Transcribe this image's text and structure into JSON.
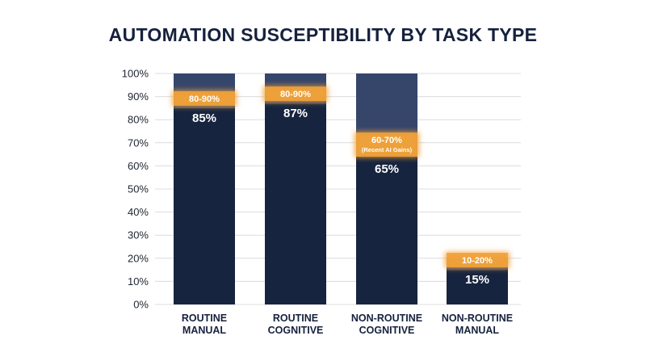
{
  "chart_data": {
    "type": "bar",
    "title": "AUTOMATION SUSCEPTIBILITY BY TASK TYPE",
    "xlabel": "",
    "ylabel": "",
    "ylim": [
      0,
      100
    ],
    "yticks": [
      "0%",
      "10%",
      "20%",
      "30%",
      "40%",
      "50%",
      "60%",
      "70%",
      "80%",
      "90%",
      "100%"
    ],
    "categories": [
      [
        "ROUTINE",
        "MANUAL"
      ],
      [
        "ROUTINE",
        "COGNITIVE"
      ],
      [
        "NON-ROUTINE",
        "COGNITIVE"
      ],
      [
        "NON-ROUTINE",
        "MANUAL"
      ]
    ],
    "values": [
      85,
      87,
      65,
      15
    ],
    "value_labels": [
      "85%",
      "87%",
      "65%",
      "15%"
    ],
    "range_top": [
      100,
      100,
      100,
      20
    ],
    "range_labels": [
      "80-90%",
      "80-90%",
      "60-70%",
      "10-20%"
    ],
    "range_notes": [
      "",
      "",
      "(Recent AI Gains)",
      ""
    ],
    "grid": true,
    "colors": {
      "bar": "#17243f",
      "range_fill": "#36456a",
      "highlight": "#f0a23a",
      "title": "#16213d",
      "grid": "#dcdcdc"
    }
  }
}
